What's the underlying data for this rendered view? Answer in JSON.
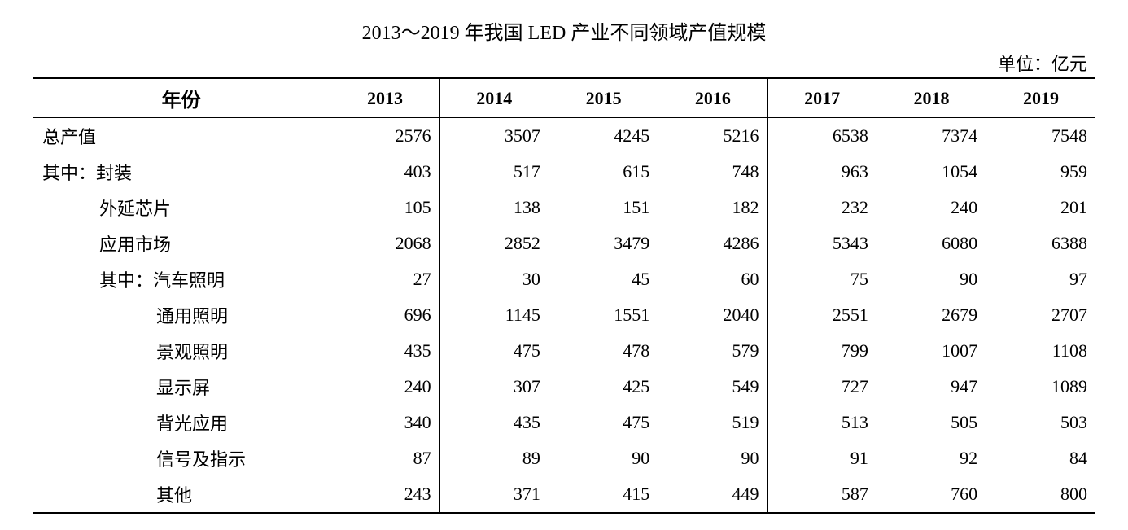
{
  "title": "2013～2019 年我国 LED 产业不同领域产值规模",
  "unit_label": "单位：亿元",
  "table": {
    "header_label": "年份",
    "years": [
      "2013",
      "2014",
      "2015",
      "2016",
      "2017",
      "2018",
      "2019"
    ],
    "rows": [
      {
        "label": "总产值",
        "indent": 0,
        "values": [
          2576,
          3507,
          4245,
          5216,
          6538,
          7374,
          7548
        ]
      },
      {
        "label": "其中：封装",
        "indent": 1,
        "values": [
          403,
          517,
          615,
          748,
          963,
          1054,
          959
        ]
      },
      {
        "label": "外延芯片",
        "indent": 2,
        "values": [
          105,
          138,
          151,
          182,
          232,
          240,
          201
        ]
      },
      {
        "label": "应用市场",
        "indent": 2,
        "values": [
          2068,
          2852,
          3479,
          4286,
          5343,
          6080,
          6388
        ]
      },
      {
        "label": "其中：汽车照明",
        "indent": 3,
        "values": [
          27,
          30,
          45,
          60,
          75,
          90,
          97
        ]
      },
      {
        "label": "通用照明",
        "indent": 4,
        "values": [
          696,
          1145,
          1551,
          2040,
          2551,
          2679,
          2707
        ]
      },
      {
        "label": "景观照明",
        "indent": 4,
        "values": [
          435,
          475,
          478,
          579,
          799,
          1007,
          1108
        ]
      },
      {
        "label": "显示屏",
        "indent": 4,
        "values": [
          240,
          307,
          425,
          549,
          727,
          947,
          1089
        ]
      },
      {
        "label": "背光应用",
        "indent": 4,
        "values": [
          340,
          435,
          475,
          519,
          513,
          505,
          503
        ]
      },
      {
        "label": "信号及指示",
        "indent": 4,
        "values": [
          87,
          89,
          90,
          90,
          91,
          92,
          84
        ]
      },
      {
        "label": "其他",
        "indent": 4,
        "values": [
          243,
          371,
          415,
          449,
          587,
          760,
          800
        ]
      }
    ]
  },
  "style": {
    "text_color": "#000000",
    "background_color": "#ffffff",
    "border_color": "#000000",
    "title_fontsize": 24,
    "body_fontsize": 22,
    "header_fontweight": "bold",
    "font_family": "SimSun"
  }
}
